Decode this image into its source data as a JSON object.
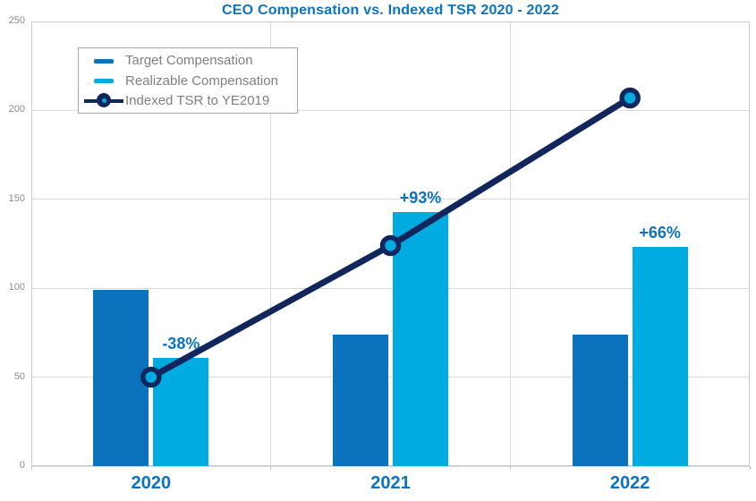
{
  "chart_data": {
    "type": "bar+line combo",
    "title": "CEO Compensation vs. Indexed TSR 2020 - 2022",
    "categories": [
      "2020",
      "2021",
      "2022"
    ],
    "series": [
      {
        "name": "Target Compensation",
        "type": "bar",
        "values": [
          99,
          74,
          74
        ]
      },
      {
        "name": "Realizable Compensation",
        "type": "bar",
        "values": [
          61,
          143,
          123
        ]
      },
      {
        "name": "Indexed TSR to YE2019",
        "type": "line",
        "values": [
          50,
          124,
          207
        ]
      }
    ],
    "data_labels": [
      {
        "category": "2020",
        "series": "Realizable Compensation",
        "text": "-38%"
      },
      {
        "category": "2021",
        "series": "Realizable Compensation",
        "text": "+93%"
      },
      {
        "category": "2022",
        "series": "Realizable Compensation",
        "text": "+66%"
      }
    ],
    "ylim": [
      0,
      250
    ],
    "yticks": [
      0,
      50,
      100,
      150,
      200,
      250
    ],
    "grid": true,
    "legend_position": "top-left"
  },
  "legend": {
    "items": [
      {
        "label": "Target Compensation"
      },
      {
        "label": "Realizable Compensation"
      },
      {
        "label": "Indexed TSR to YE2019"
      }
    ]
  },
  "colors": {
    "target_bar": "#0b72be",
    "realizable_bar": "#00abe1",
    "tsr_line": "#12265e",
    "tsr_marker_fill": "#00abe1",
    "title_text": "#0d73bf",
    "data_label_text": "#0d73bf",
    "x_label_text": "#0d73bf",
    "axis_tick_text": "#8c8c8c",
    "legend_text": "#7f7f7f",
    "gridline": "#d9d9d9",
    "plot_border": "#cccccc"
  }
}
